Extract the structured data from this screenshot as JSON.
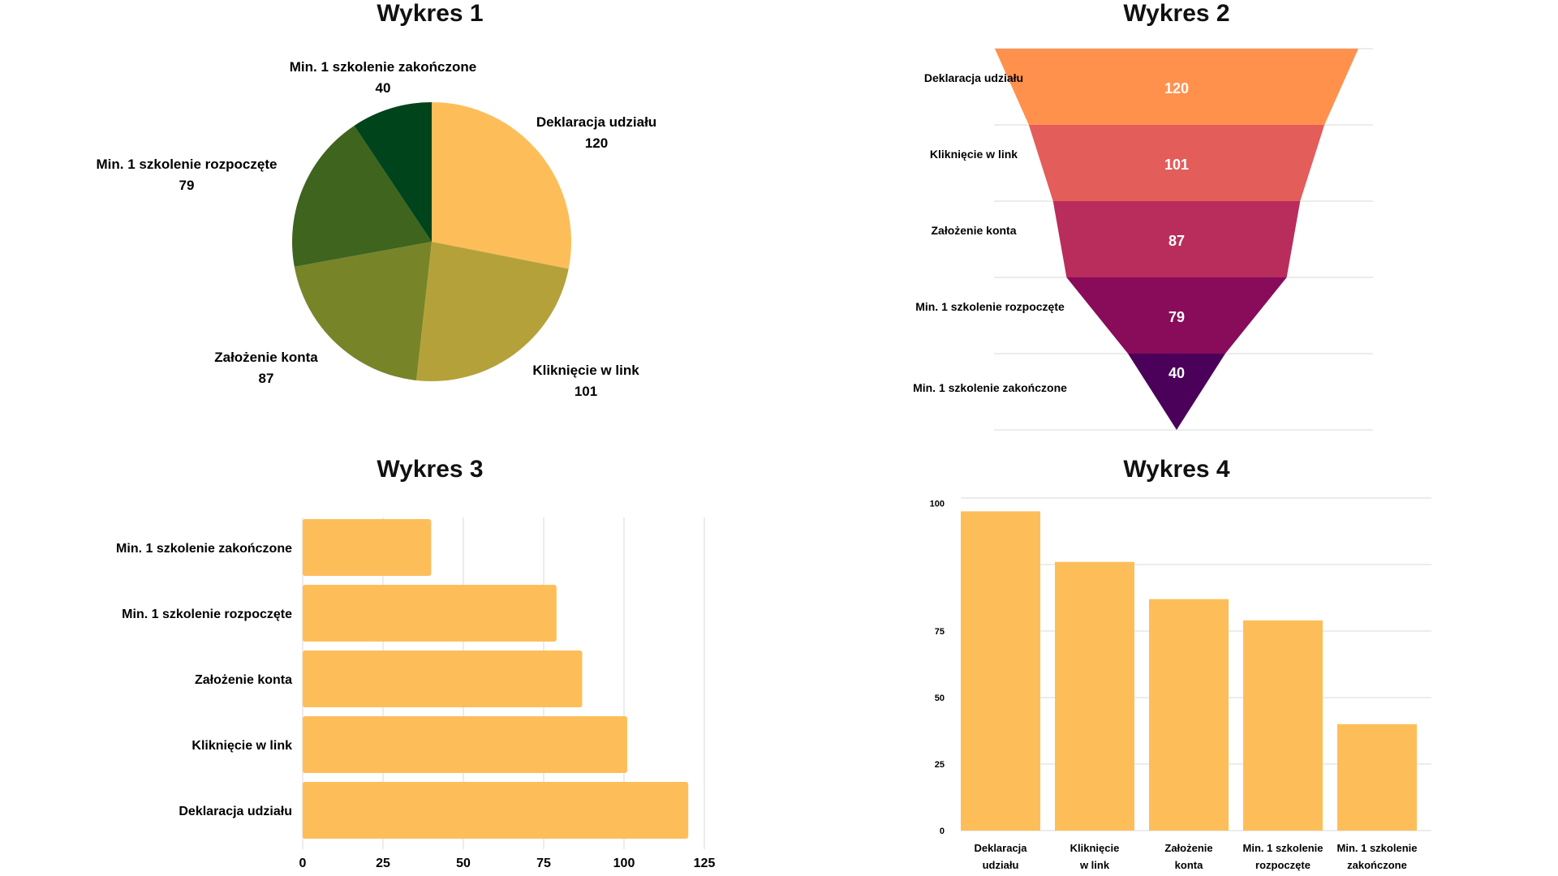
{
  "colors": {
    "bar": "#FDBE5A",
    "grid": "#D9D9D9",
    "pie": [
      "#FDBE5A",
      "#B5A13A",
      "#788428",
      "#3E641E",
      "#00441B"
    ],
    "funnel": [
      "#FF914D",
      "#E35D5B",
      "#B92D5D",
      "#880C5A",
      "#4B005A"
    ]
  },
  "chart_data": [
    {
      "type": "pie",
      "title": "Wykres 1",
      "categories": [
        "Deklaracja udziału",
        "Kliknięcie w link",
        "Założenie konta",
        "Min. 1 szkolenie rozpoczęte",
        "Min. 1 szkolenie zakończone"
      ],
      "values": [
        120,
        101,
        87,
        79,
        40
      ]
    },
    {
      "type": "bar",
      "subtype": "funnel",
      "title": "Wykres 2",
      "categories": [
        "Deklaracja udziału",
        "Kliknięcie w link",
        "Założenie konta",
        "Min. 1 szkolenie rozpoczęte",
        "Min. 1 szkolenie zakończone"
      ],
      "values": [
        120,
        101,
        87,
        79,
        40
      ]
    },
    {
      "type": "bar",
      "orientation": "horizontal",
      "title": "Wykres 3",
      "categories": [
        "Min. 1 szkolenie zakończone",
        "Min. 1 szkolenie rozpoczęte",
        "Założenie konta",
        "Kliknięcie w link",
        "Deklaracja udziału"
      ],
      "values": [
        40,
        79,
        87,
        101,
        120
      ],
      "xlim": [
        0,
        125
      ],
      "xticks": [
        "0",
        "25",
        "50",
        "75",
        "100",
        "125"
      ],
      "grid": "vertical"
    },
    {
      "type": "bar",
      "orientation": "vertical",
      "title": "Wykres 4",
      "categories": [
        "Deklaracja udziału",
        "Kliknięcie w link",
        "Założenie konta",
        "Min. 1 szkolenie rozpoczęte",
        "Min. 1 szkolenie zakończone"
      ],
      "category_lines": [
        [
          "Deklaracja",
          "udziału"
        ],
        [
          "Kliknięcie",
          "w link"
        ],
        [
          "Założenie",
          "konta"
        ],
        [
          "Min. 1 szkolenie",
          "rozpoczęte"
        ],
        [
          "Min. 1 szkolenie",
          "zakończone"
        ]
      ],
      "values": [
        120,
        101,
        87,
        79,
        40
      ],
      "ylim": [
        0,
        125
      ],
      "yticks": [
        "0",
        "25",
        "50",
        "75",
        "100"
      ],
      "grid": "horizontal"
    }
  ]
}
